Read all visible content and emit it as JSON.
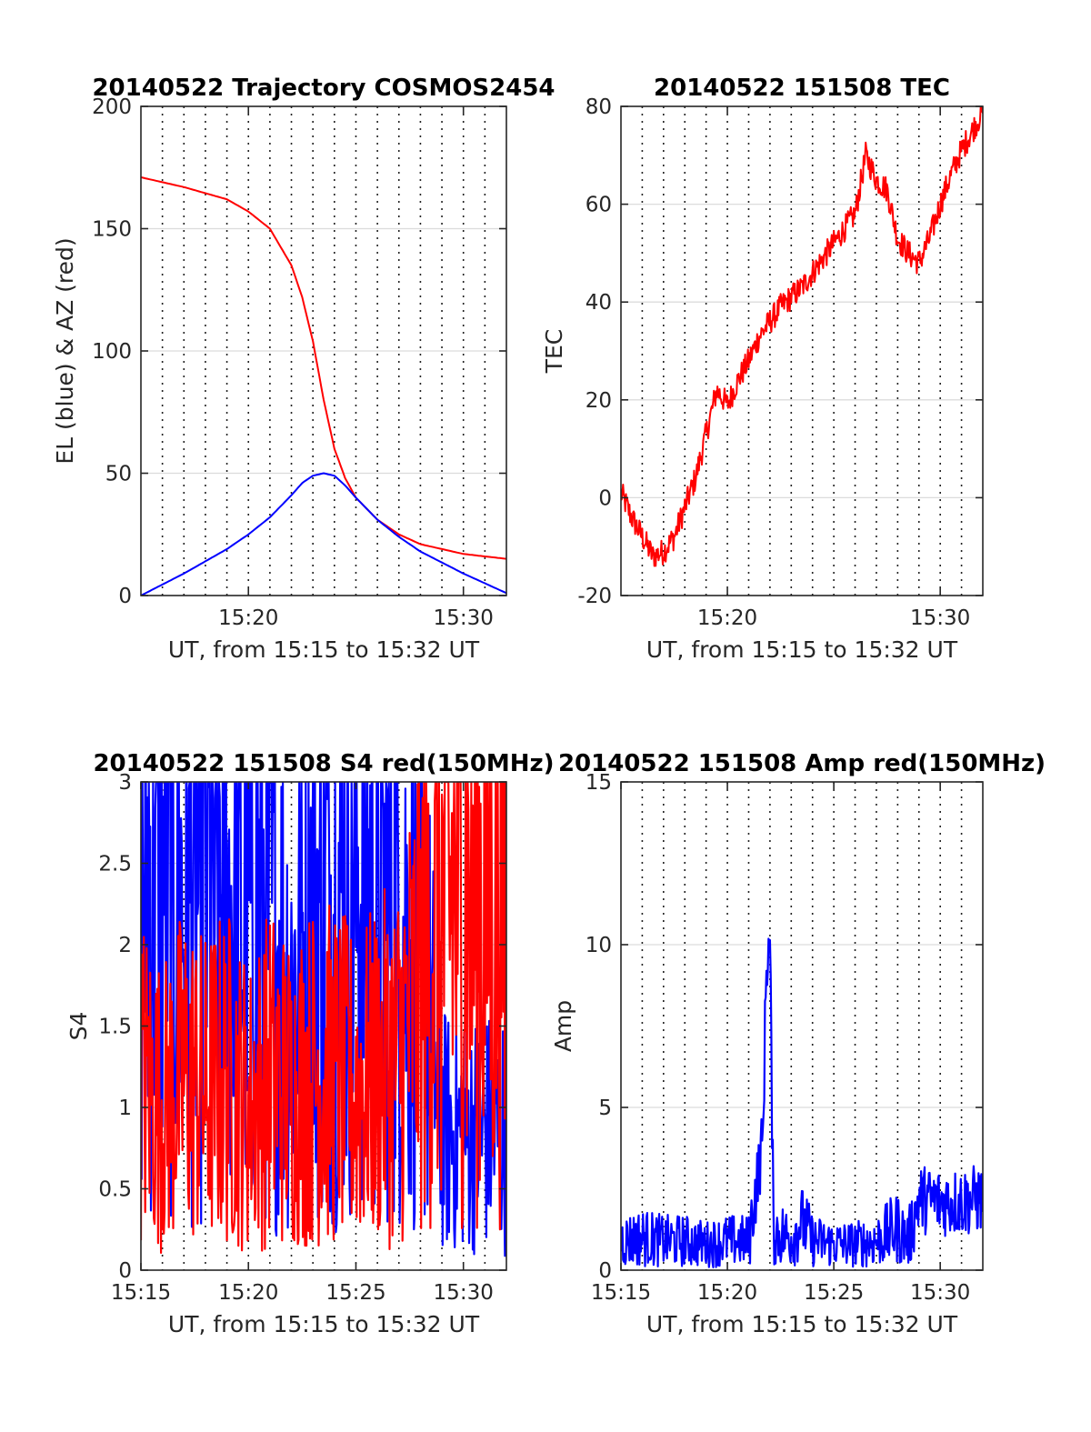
{
  "chart_data": [
    {
      "type": "line",
      "title": "20140522 Trajectory COSMOS2454",
      "xlabel": "UT, from 15:15 to 15:32 UT",
      "ylabel": "EL (blue) & AZ (red)",
      "xlim": [
        "15:15",
        "15:32"
      ],
      "ylim": [
        0,
        200
      ],
      "xticks": [
        "15:20",
        "15:30"
      ],
      "yticks": [
        0,
        50,
        100,
        150,
        200
      ],
      "grid": "on",
      "series": [
        {
          "color": "#ff0000",
          "x": [
            "15:15",
            "15:17",
            "15:19",
            "15:20",
            "15:21",
            "15:22",
            "15:22:30",
            "15:23",
            "15:23:30",
            "15:24",
            "15:24:30",
            "15:25",
            "15:26",
            "15:27",
            "15:28",
            "15:30",
            "15:32"
          ],
          "values": [
            171,
            167,
            162,
            157,
            150,
            135,
            122,
            104,
            80,
            60,
            48,
            40,
            31,
            25,
            21,
            17,
            15
          ]
        },
        {
          "color": "#0000ff",
          "x": [
            "15:15",
            "15:17",
            "15:19",
            "15:20",
            "15:21",
            "15:22",
            "15:22:30",
            "15:23",
            "15:23:30",
            "15:24",
            "15:24:30",
            "15:25",
            "15:26",
            "15:27",
            "15:28",
            "15:30",
            "15:32"
          ],
          "values": [
            0,
            9,
            19,
            25,
            32,
            41,
            46,
            49,
            50,
            49,
            45,
            40,
            31,
            24,
            18,
            9,
            1
          ]
        }
      ]
    },
    {
      "type": "line",
      "title": "20140522 151508 TEC",
      "xlabel": "UT, from 15:15 to 15:32 UT",
      "ylabel": "TEC",
      "xlim": [
        "15:15",
        "15:32"
      ],
      "ylim": [
        -20,
        80
      ],
      "xticks": [
        "15:20",
        "15:30"
      ],
      "yticks": [
        -20,
        0,
        20,
        40,
        60,
        80
      ],
      "grid": "on",
      "series": [
        {
          "color": "#ff0000",
          "x": [
            "15:15",
            "15:15:30",
            "15:16",
            "15:16:30",
            "15:17",
            "15:17:30",
            "15:18",
            "15:18:30",
            "15:19",
            "15:19:30",
            "15:20",
            "15:20:30",
            "15:21",
            "15:21:30",
            "15:22",
            "15:22:30",
            "15:23",
            "15:23:30",
            "15:24",
            "15:24:30",
            "15:25",
            "15:25:30",
            "15:26",
            "15:26:30",
            "15:27",
            "15:27:30",
            "15:28",
            "15:28:30",
            "15:29",
            "15:29:30",
            "15:30",
            "15:30:30",
            "15:31",
            "15:31:30",
            "15:32"
          ],
          "values": [
            1,
            -4,
            -8,
            -12,
            -11,
            -8,
            -2,
            4,
            13,
            22,
            19,
            24,
            28,
            33,
            36,
            39,
            41,
            43,
            46,
            49,
            52,
            55,
            58,
            70,
            65,
            63,
            53,
            50,
            48,
            53,
            60,
            66,
            71,
            75,
            79
          ]
        }
      ]
    },
    {
      "type": "line",
      "title": "20140522 151508 S4 red(150MHz)",
      "xlabel": "UT, from 15:15 to 15:32 UT",
      "ylabel": "S4",
      "xlim": [
        "15:15",
        "15:32"
      ],
      "ylim": [
        0,
        3
      ],
      "xticks": [
        "15:15",
        "15:20",
        "15:25",
        "15:30"
      ],
      "yticks": [
        0,
        0.5,
        1,
        1.5,
        2,
        2.5,
        3
      ],
      "grid": "on",
      "series": [
        {
          "color": "#0000ff",
          "x": [
            "15:15",
            "15:16",
            "15:17",
            "15:18",
            "15:19",
            "15:20",
            "15:21",
            "15:22",
            "15:23",
            "15:24",
            "15:25",
            "15:26",
            "15:27",
            "15:28",
            "15:28:30",
            "15:29",
            "15:30",
            "15:31",
            "15:32"
          ],
          "values": [
            2.4,
            2.6,
            2.2,
            2.4,
            2.3,
            2.1,
            2.2,
            1.7,
            2.2,
            2.3,
            2.4,
            2.3,
            2.1,
            1.9,
            1.5,
            0.85,
            0.85,
            0.85,
            0.85
          ]
        },
        {
          "color": "#ff0000",
          "x": [
            "15:15",
            "15:16",
            "15:17",
            "15:18",
            "15:19",
            "15:20",
            "15:21",
            "15:22",
            "15:23",
            "15:24",
            "15:25",
            "15:26",
            "15:27",
            "15:28",
            "15:29",
            "15:30",
            "15:31",
            "15:32"
          ],
          "values": [
            1.2,
            1.0,
            1.2,
            1.1,
            1.2,
            1.0,
            1.2,
            1.1,
            1.2,
            1.2,
            1.1,
            1.2,
            1.3,
            1.8,
            2.2,
            2.4,
            2.3,
            2.4
          ]
        }
      ]
    },
    {
      "type": "line",
      "title": "20140522 151508 Amp red(150MHz)",
      "xlabel": "UT, from 15:15 to 15:32 UT",
      "ylabel": "Amp",
      "xlim": [
        "15:15",
        "15:32"
      ],
      "ylim": [
        0,
        15
      ],
      "xticks": [
        "15:15",
        "15:20",
        "15:25",
        "15:30"
      ],
      "yticks": [
        0,
        5,
        10,
        15
      ],
      "grid": "on",
      "series": [
        {
          "color": "#0000ff",
          "x": [
            "15:15",
            "15:16",
            "15:17",
            "15:18",
            "15:19",
            "15:20",
            "15:21",
            "15:21:40",
            "15:21:50",
            "15:22",
            "15:22:10",
            "15:23",
            "15:23:30",
            "15:24",
            "15:25",
            "15:26",
            "15:27",
            "15:28",
            "15:28:30",
            "15:29",
            "15:30",
            "15:31",
            "15:32"
          ],
          "values": [
            0.9,
            1.0,
            0.9,
            0.9,
            0.8,
            0.9,
            0.9,
            4.0,
            9.5,
            10.0,
            1.2,
            1.0,
            1.5,
            0.9,
            0.8,
            0.8,
            0.9,
            1.3,
            0.9,
            2.2,
            2.1,
            2.1,
            2.2
          ]
        }
      ]
    }
  ]
}
